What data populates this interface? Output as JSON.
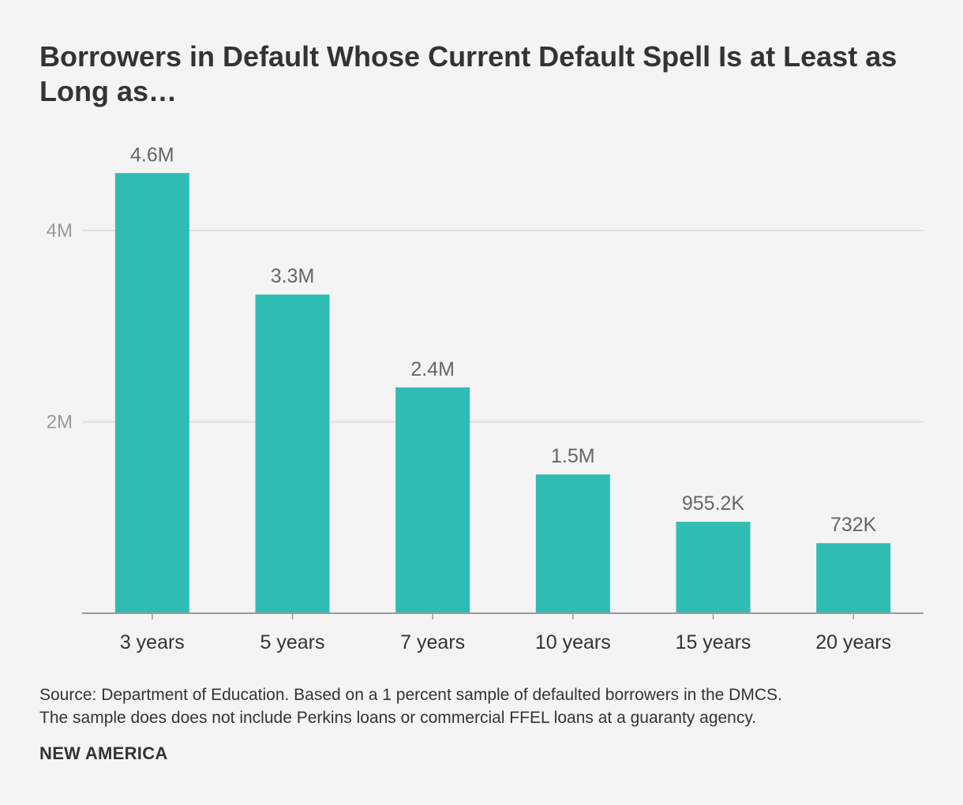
{
  "title": "Borrowers in Default Whose Current Default Spell Is at Least as Long as…",
  "chart_data": {
    "type": "bar",
    "categories": [
      "3 years",
      "5 years",
      "7 years",
      "10 years",
      "15 years",
      "20 years"
    ],
    "values": [
      4600000,
      3330000,
      2360000,
      1450000,
      955200,
      732000
    ],
    "data_labels": [
      "4.6M",
      "3.3M",
      "2.4M",
      "1.5M",
      "955.2K",
      "732K"
    ],
    "y_ticks": [
      2000000,
      4000000
    ],
    "y_tick_labels": [
      "2M",
      "4M"
    ],
    "ylim": [
      0,
      4800000
    ],
    "grid": true,
    "legend": "none",
    "bar_color": "#2fbcb3"
  },
  "source": {
    "line1": "Source: Department of Education. Based on a 1 percent sample of defaulted borrowers in the DMCS.",
    "line2": "The sample does does not include Perkins loans or commercial FFEL loans at a guaranty agency."
  },
  "brand": "NEW AMERICA"
}
